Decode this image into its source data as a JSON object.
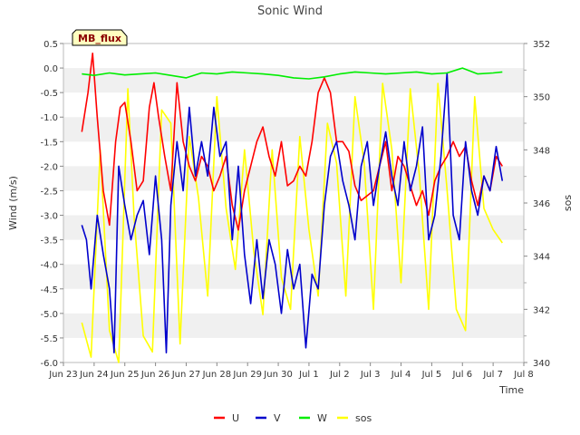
{
  "chart_data": {
    "type": "line",
    "title": "Sonic Wind",
    "xlabel": "Time",
    "ylabel": "Wind (m/s)",
    "y2label": "sos",
    "site_badge": "MB_flux",
    "x_ticks": [
      "Jun 23",
      "Jun 24",
      "Jun 25",
      "Jun 26",
      "Jun 27",
      "Jun 28",
      "Jun 29",
      "Jun 30",
      "Jul 1",
      "Jul 2",
      "Jul 3",
      "Jul 4",
      "Jul 5",
      "Jul 6",
      "Jul 7",
      "Jul 8"
    ],
    "x_range_days": [
      0,
      15
    ],
    "ylim": [
      -6.0,
      0.5
    ],
    "y_ticks": [
      "0.5",
      "0.0",
      "-0.5",
      "-1.0",
      "-1.5",
      "-2.0",
      "-2.5",
      "-3.0",
      "-3.5",
      "-4.0",
      "-4.5",
      "-5.0",
      "-5.5",
      "-6.0"
    ],
    "y2lim": [
      340,
      352
    ],
    "y2_ticks": [
      "352",
      "350",
      "348",
      "346",
      "344",
      "342",
      "340"
    ],
    "series": [
      {
        "name": "U",
        "color": "#ff0000",
        "x": [
          0.6,
          0.8,
          0.95,
          1.1,
          1.3,
          1.5,
          1.7,
          1.85,
          2.0,
          2.2,
          2.4,
          2.6,
          2.8,
          2.95,
          3.1,
          3.3,
          3.5,
          3.7,
          3.9,
          4.1,
          4.3,
          4.5,
          4.7,
          4.9,
          5.1,
          5.3,
          5.5,
          5.7,
          5.9,
          6.1,
          6.3,
          6.5,
          6.7,
          6.9,
          7.1,
          7.3,
          7.5,
          7.7,
          7.9,
          8.1,
          8.3,
          8.5,
          8.7,
          8.9,
          9.1,
          9.3,
          9.5,
          9.7,
          9.9,
          10.1,
          10.3,
          10.5,
          10.7,
          10.9,
          11.1,
          11.3,
          11.5,
          11.7,
          11.9,
          12.1,
          12.3,
          12.5,
          12.7,
          12.9,
          13.1,
          13.3,
          13.5,
          13.7,
          13.9,
          14.1,
          14.3
        ],
        "values": [
          -1.3,
          -0.5,
          0.3,
          -1.0,
          -2.5,
          -3.2,
          -1.5,
          -0.8,
          -0.7,
          -1.5,
          -2.5,
          -2.3,
          -0.8,
          -0.3,
          -1.0,
          -1.8,
          -2.5,
          -0.3,
          -1.5,
          -2.0,
          -2.3,
          -1.8,
          -2.0,
          -2.5,
          -2.2,
          -1.8,
          -2.8,
          -3.3,
          -2.5,
          -2.0,
          -1.5,
          -1.2,
          -1.8,
          -2.2,
          -1.5,
          -2.4,
          -2.3,
          -2.0,
          -2.2,
          -1.5,
          -0.5,
          -0.2,
          -0.5,
          -1.5,
          -1.5,
          -1.7,
          -2.4,
          -2.7,
          -2.6,
          -2.5,
          -2.0,
          -1.5,
          -2.5,
          -1.8,
          -2.0,
          -2.4,
          -2.8,
          -2.5,
          -3.0,
          -2.3,
          -2.0,
          -1.8,
          -1.5,
          -1.8,
          -1.6,
          -2.3,
          -2.8,
          -2.2,
          -2.5,
          -1.8,
          -2.0
        ]
      },
      {
        "name": "V",
        "color": "#0000cc",
        "x": [
          0.6,
          0.75,
          0.9,
          1.1,
          1.3,
          1.5,
          1.65,
          1.8,
          2.0,
          2.2,
          2.4,
          2.6,
          2.8,
          3.0,
          3.2,
          3.35,
          3.5,
          3.7,
          3.9,
          4.1,
          4.3,
          4.5,
          4.7,
          4.9,
          5.1,
          5.3,
          5.5,
          5.7,
          5.9,
          6.1,
          6.3,
          6.5,
          6.7,
          6.9,
          7.1,
          7.3,
          7.5,
          7.7,
          7.9,
          8.1,
          8.3,
          8.5,
          8.7,
          8.9,
          9.1,
          9.3,
          9.5,
          9.7,
          9.9,
          10.1,
          10.3,
          10.5,
          10.7,
          10.9,
          11.1,
          11.3,
          11.5,
          11.7,
          11.9,
          12.1,
          12.3,
          12.5,
          12.7,
          12.9,
          13.1,
          13.3,
          13.5,
          13.7,
          13.9,
          14.1,
          14.3
        ],
        "values": [
          -3.2,
          -3.5,
          -4.5,
          -3.0,
          -3.8,
          -4.5,
          -5.8,
          -2.0,
          -2.8,
          -3.5,
          -3.0,
          -2.7,
          -3.8,
          -2.2,
          -3.5,
          -5.8,
          -2.8,
          -1.5,
          -2.5,
          -0.8,
          -2.2,
          -1.5,
          -2.2,
          -0.8,
          -1.8,
          -1.5,
          -3.5,
          -2.0,
          -3.8,
          -4.8,
          -3.5,
          -4.7,
          -3.5,
          -4.0,
          -5.0,
          -3.7,
          -4.5,
          -4.0,
          -5.7,
          -4.2,
          -4.5,
          -2.8,
          -1.8,
          -1.5,
          -2.3,
          -2.8,
          -3.5,
          -2.0,
          -1.5,
          -2.8,
          -2.0,
          -1.3,
          -2.2,
          -2.8,
          -1.5,
          -2.5,
          -2.0,
          -1.2,
          -3.5,
          -3.0,
          -1.8,
          -0.1,
          -3.0,
          -3.5,
          -1.5,
          -2.5,
          -3.0,
          -2.2,
          -2.5,
          -1.6,
          -2.3
        ]
      },
      {
        "name": "W",
        "color": "#00ee00",
        "x": [
          0.6,
          1.0,
          1.5,
          2.0,
          2.5,
          3.0,
          3.5,
          4.0,
          4.5,
          5.0,
          5.5,
          6.0,
          6.5,
          7.0,
          7.5,
          8.0,
          8.5,
          9.0,
          9.5,
          10.0,
          10.5,
          11.0,
          11.5,
          12.0,
          12.5,
          13.0,
          13.5,
          14.0,
          14.3
        ],
        "values": [
          -0.12,
          -0.15,
          -0.1,
          -0.14,
          -0.12,
          -0.1,
          -0.15,
          -0.2,
          -0.1,
          -0.12,
          -0.08,
          -0.1,
          -0.12,
          -0.15,
          -0.2,
          -0.22,
          -0.18,
          -0.12,
          -0.08,
          -0.1,
          -0.12,
          -0.1,
          -0.08,
          -0.12,
          -0.1,
          0.0,
          -0.12,
          -0.1,
          -0.08
        ]
      },
      {
        "name": "sos",
        "color": "#ffff00",
        "axis": "y2",
        "x": [
          0.6,
          0.9,
          1.2,
          1.5,
          1.8,
          2.1,
          2.3,
          2.6,
          2.9,
          3.2,
          3.5,
          3.8,
          4.1,
          4.4,
          4.7,
          5.0,
          5.3,
          5.6,
          5.9,
          6.2,
          6.5,
          6.8,
          7.1,
          7.4,
          7.7,
          8.0,
          8.3,
          8.6,
          8.9,
          9.2,
          9.5,
          9.8,
          10.1,
          10.4,
          10.7,
          11.0,
          11.3,
          11.6,
          11.9,
          12.2,
          12.5,
          12.8,
          13.1,
          13.4,
          13.7,
          14.0,
          14.3
        ],
        "values": [
          341.5,
          340.2,
          348.0,
          341.2,
          340.0,
          350.3,
          345.5,
          341.0,
          340.4,
          349.5,
          349.0,
          340.7,
          348.5,
          346.2,
          342.5,
          350.0,
          345.8,
          343.5,
          348.0,
          344.2,
          341.8,
          348.0,
          343.2,
          342.0,
          348.5,
          345.0,
          342.5,
          349.0,
          347.5,
          342.5,
          350.0,
          347.5,
          342.0,
          350.5,
          348.0,
          343.0,
          350.3,
          347.0,
          342.0,
          350.5,
          346.5,
          342.0,
          341.2,
          350.0,
          345.8,
          345.0,
          344.5
        ]
      }
    ]
  }
}
